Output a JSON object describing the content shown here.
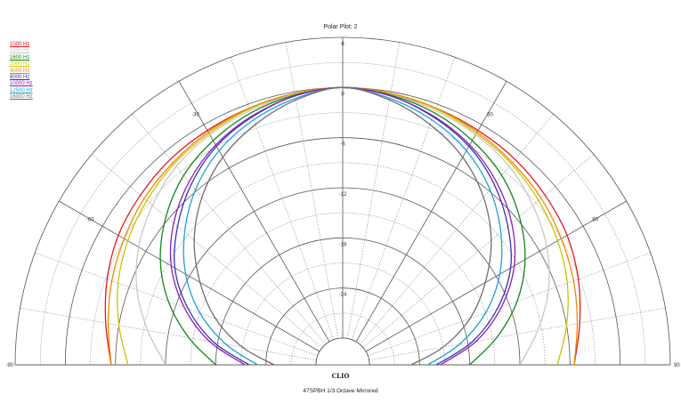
{
  "title": "Polar Plot: 2",
  "logo": "CLIO",
  "footer": "47SPBH  1/3 Octave  Mirrored",
  "chart_data": {
    "type": "line",
    "subtype": "polar-half",
    "title": "Polar Plot: 2",
    "angle_range_deg": [
      -90,
      90
    ],
    "angle_step_deg": 10,
    "angle_tick_labels": [
      "-90",
      "-60",
      "-30",
      "0",
      "30",
      "60",
      "90"
    ],
    "radial_range_db": [
      -30,
      6
    ],
    "radial_step_db": 3,
    "radial_tick_labels": [
      "6",
      "0",
      "-6",
      "-12",
      "-18",
      "-24"
    ],
    "mirrored": true,
    "angles_deg": [
      0,
      10,
      20,
      30,
      40,
      50,
      60,
      70,
      80,
      90
    ],
    "series": [
      {
        "name": "1000 Hz",
        "color": "#e8151b",
        "values": [
          0,
          -0.3,
          -0.5,
          -0.8,
          -1.1,
          -1.6,
          -2.2,
          -3.2,
          -4.4,
          -5.5
        ]
      },
      {
        "name": "1500 Hz",
        "color": "#c8c8c8",
        "values": [
          0,
          -0.3,
          -0.8,
          -1.4,
          -2.2,
          -3.5,
          -5.0,
          -7.0,
          -9.5,
          -12.0
        ]
      },
      {
        "name": "1600 Hz",
        "color": "#14851c",
        "values": [
          0,
          -0.4,
          -1.1,
          -2.2,
          -3.6,
          -5.6,
          -8.0,
          -11.0,
          -14.5,
          -18.0
        ]
      },
      {
        "name": "2000 Hz",
        "color": "#c9c400",
        "values": [
          0,
          -0.2,
          -0.6,
          -1.2,
          -1.8,
          -2.6,
          -3.5,
          -4.6,
          -6.0,
          -7.5
        ]
      },
      {
        "name": "4000 Hz",
        "color": "#ee8a00",
        "values": [
          0,
          -0.2,
          -0.5,
          -1.0,
          -1.6,
          -2.2,
          -3.0,
          -3.8,
          -4.7,
          -5.5
        ]
      },
      {
        "name": "8000 Hz",
        "color": "#3a2fb0",
        "values": [
          0,
          -0.5,
          -1.6,
          -3.0,
          -5.0,
          -7.4,
          -10.0,
          -13.5,
          -17.5,
          -22.0
        ]
      },
      {
        "name": "10000 Hz",
        "color": "#8a1fb8",
        "values": [
          0,
          -0.5,
          -1.5,
          -2.8,
          -4.6,
          -6.8,
          -9.5,
          -13.0,
          -17.0,
          -21.5
        ]
      },
      {
        "name": "12500 Hz",
        "color": "#1aa0d8",
        "values": [
          0,
          -0.8,
          -2.0,
          -3.6,
          -5.8,
          -8.5,
          -11.5,
          -15.0,
          -19.0,
          -23.0
        ]
      },
      {
        "name": "16000 Hz",
        "color": "#6e6e6e",
        "values": [
          0,
          -1.0,
          -2.6,
          -4.5,
          -7.0,
          -10.0,
          -13.5,
          -17.0,
          -21.0,
          -25.0
        ]
      }
    ]
  }
}
